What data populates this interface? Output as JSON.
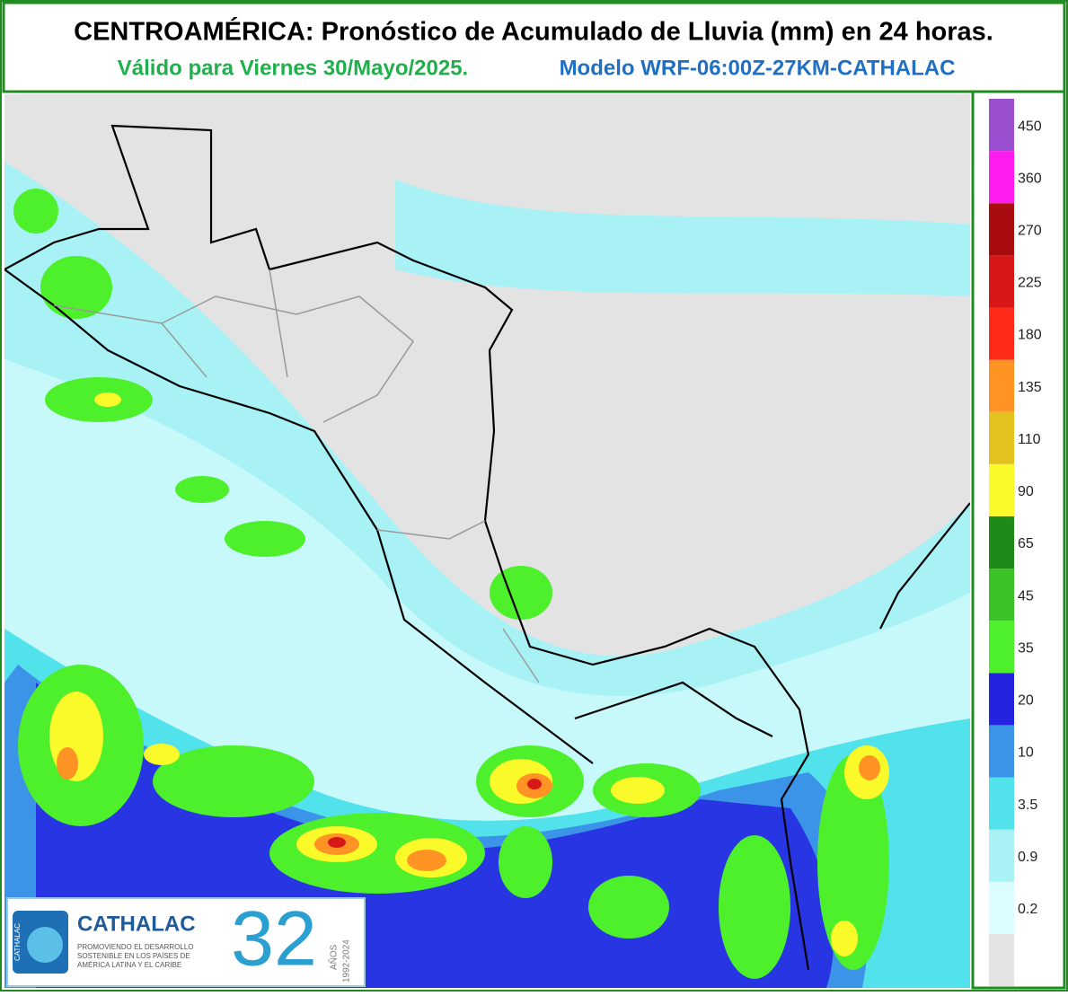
{
  "header": {
    "title": "CENTROAMÉRICA: Pronóstico de Acumulado de Lluvia (mm) en 24 horas.",
    "validity": "Válido para Viernes 30/Mayo/2025.",
    "model": "Modelo WRF-06:00Z-27KM-CATHALAC"
  },
  "legend": {
    "levels": [
      0.2,
      0.9,
      3.5,
      10,
      20,
      35,
      45,
      65,
      90,
      110,
      135,
      180,
      225,
      270,
      360,
      450
    ],
    "colors": [
      "#e3e3e3",
      "#dcfdfd",
      "#a8f2f6",
      "#52e2ec",
      "#3b94e8",
      "#2424e0",
      "#4ef02c",
      "#3ac226",
      "#1f8a1a",
      "#fafa2a",
      "#e2c21c",
      "#ff9424",
      "#ff2a1a",
      "#d81818",
      "#a80c0c",
      "#ff1cf0",
      "#9a4ed0"
    ]
  },
  "logo": {
    "name": "CATHALAC",
    "badge": "CATHALAC",
    "tagline": [
      "PROMOVIENDO EL DESARROLLO",
      "SOSTENIBLE EN LOS PAÍSES DE",
      "AMÉRICA LATINA Y EL CARIBE"
    ],
    "anniversary": "32",
    "years_word": "AÑOS",
    "years": "1992-2024"
  }
}
